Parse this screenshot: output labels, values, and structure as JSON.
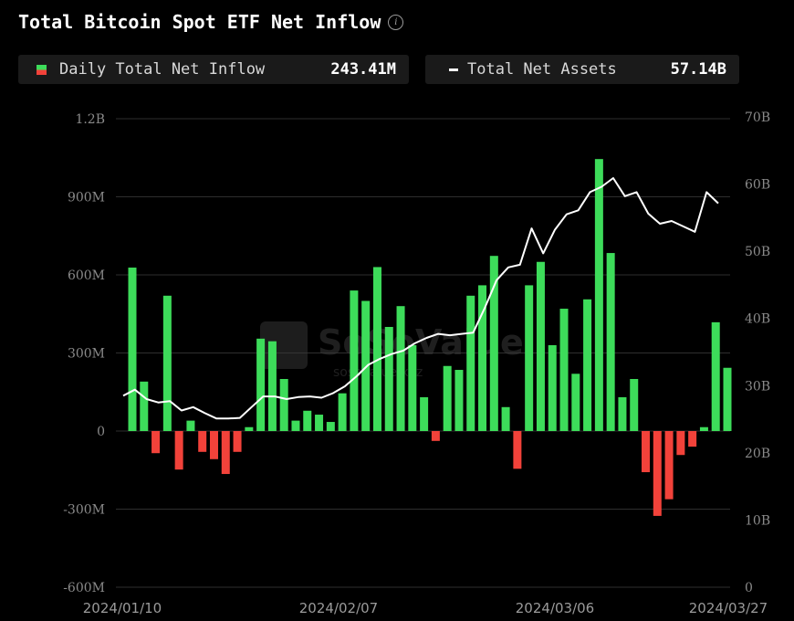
{
  "header": {
    "title": "Total Bitcoin Spot ETF Net Inflow",
    "info_icon": "info-icon"
  },
  "legend": {
    "inflow_label": "Daily Total Net Inflow",
    "inflow_value": "243.41M",
    "assets_label": "Total Net Assets",
    "assets_value": "57.14B"
  },
  "watermark": {
    "brand": "SoSoValue",
    "sub": "sosovalue.xyz"
  },
  "colors": {
    "positive": "#3ddc5a",
    "negative": "#f2423a",
    "line": "#ffffff",
    "grid": "#2e2e2e",
    "background": "#000000"
  },
  "chart_data": {
    "type": "bar",
    "title": "Total Bitcoin Spot ETF Net Inflow",
    "left_axis": {
      "ticks": [
        "1.2B",
        "900M",
        "600M",
        "300M",
        "0",
        "-300M",
        "-600M"
      ],
      "values": [
        1200,
        900,
        600,
        300,
        0,
        -300,
        -600
      ],
      "unit": "M"
    },
    "right_axis": {
      "ticks": [
        "70B",
        "60B",
        "50B",
        "40B",
        "30B",
        "20B",
        "10B",
        "0"
      ],
      "values": [
        70,
        60,
        50,
        40,
        30,
        20,
        10,
        0
      ],
      "unit": "B"
    },
    "x_labels": [
      "2024/01/10",
      "2024/02/07",
      "2024/03/06",
      "2024/03/27"
    ],
    "grid": true,
    "series": [
      {
        "name": "Daily Total Net Inflow",
        "unit": "M",
        "kind": "bar",
        "values": [
          628,
          190,
          -85,
          520,
          -148,
          40,
          -80,
          -108,
          -165,
          -80,
          15,
          355,
          345,
          200,
          40,
          78,
          63,
          35,
          145,
          540,
          500,
          630,
          400,
          480,
          330,
          130,
          -38,
          250,
          235,
          520,
          560,
          673,
          92,
          -145,
          560,
          650,
          330,
          470,
          220,
          506,
          1045,
          684,
          130,
          200,
          -158,
          -326,
          -262,
          -92,
          -60,
          15,
          418,
          243
        ]
      },
      {
        "name": "Total Net Assets",
        "unit": "B",
        "kind": "line",
        "values": [
          28.5,
          29.4,
          28,
          27.5,
          27.7,
          26.3,
          26.8,
          25.9,
          25.1,
          25.1,
          25.2,
          26.8,
          28.4,
          28.4,
          28,
          28.3,
          28.4,
          28.2,
          28.9,
          29.9,
          31.4,
          33.1,
          34,
          34.7,
          35.2,
          36.3,
          37.1,
          37.7,
          37.5,
          37.7,
          37.9,
          41.6,
          45.7,
          47.6,
          48,
          53.4,
          49.7,
          53.2,
          55.5,
          56.1,
          58.8,
          59.6,
          60.9,
          58.2,
          58.8,
          55.6,
          54.1,
          54.5,
          53.7,
          52.9,
          58.8,
          57.14
        ]
      }
    ]
  }
}
